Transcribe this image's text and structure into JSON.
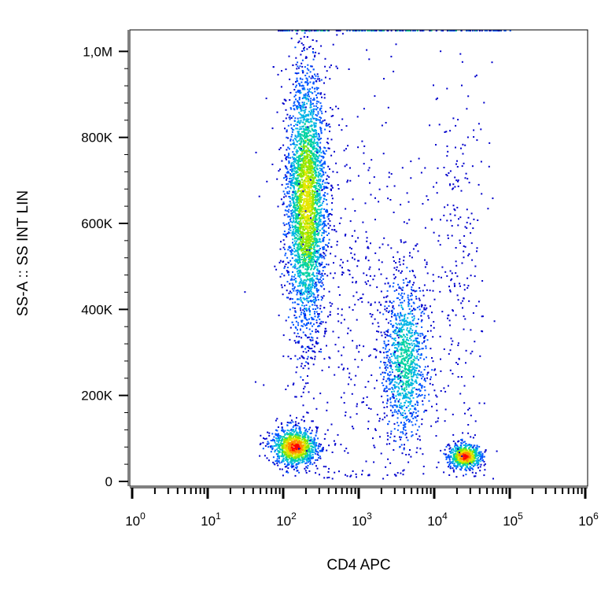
{
  "chart_data": {
    "type": "scatter",
    "subtype": "density-dot-plot",
    "title": "",
    "xlabel": "CD4 APC",
    "ylabel": "SS-A :: SS INT LIN",
    "xscale": "log",
    "xlim": [
      1,
      1000000
    ],
    "ylim": [
      0,
      1050000
    ],
    "x_ticks": [
      {
        "base": "10",
        "exp": "0",
        "value": 1
      },
      {
        "base": "10",
        "exp": "1",
        "value": 10
      },
      {
        "base": "10",
        "exp": "2",
        "value": 100
      },
      {
        "base": "10",
        "exp": "3",
        "value": 1000
      },
      {
        "base": "10",
        "exp": "4",
        "value": 10000
      },
      {
        "base": "10",
        "exp": "5",
        "value": 100000
      },
      {
        "base": "10",
        "exp": "6",
        "value": 1000000
      }
    ],
    "y_ticks": [
      {
        "label": "0",
        "value": 0
      },
      {
        "label": "200K",
        "value": 200000
      },
      {
        "label": "400K",
        "value": 400000
      },
      {
        "label": "600K",
        "value": 600000
      },
      {
        "label": "800K",
        "value": 800000
      },
      {
        "label": "1,0M",
        "value": 1000000
      }
    ],
    "grid": false,
    "legend": "none",
    "colormap": [
      "#0000cc",
      "#0055ff",
      "#00b4e6",
      "#00d2a0",
      "#8ce600",
      "#e6e600",
      "#ff8c00",
      "#ff0000"
    ],
    "populations": [
      {
        "x_center": 200,
        "x_log_spread": 0.13,
        "y_center": 650000,
        "y_spread": 150000,
        "count": 3600,
        "peak_color_index": 5
      },
      {
        "x_center": 140,
        "x_log_spread": 0.15,
        "y_center": 82000,
        "y_spread": 22000,
        "count": 1100,
        "peak_color_index": 7
      },
      {
        "x_center": 4000,
        "x_log_spread": 0.15,
        "y_center": 280000,
        "y_spread": 95000,
        "count": 1100,
        "peak_color_index": 3
      },
      {
        "x_center": 25000,
        "x_log_spread": 0.11,
        "y_center": 60000,
        "y_spread": 15000,
        "count": 650,
        "peak_color_index": 7
      },
      {
        "x_center": 20000,
        "x_log_spread": 0.2,
        "y_center": 500000,
        "y_spread": 250000,
        "count": 260,
        "peak_color_index": 0
      },
      {
        "x_center": 800,
        "x_log_spread": 0.5,
        "y_center": 400000,
        "y_spread": 250000,
        "count": 500,
        "peak_color_index": 0
      }
    ],
    "top_edge_events": {
      "x_range": [
        80,
        100000
      ],
      "y_value": 1050000,
      "count": 160
    }
  }
}
